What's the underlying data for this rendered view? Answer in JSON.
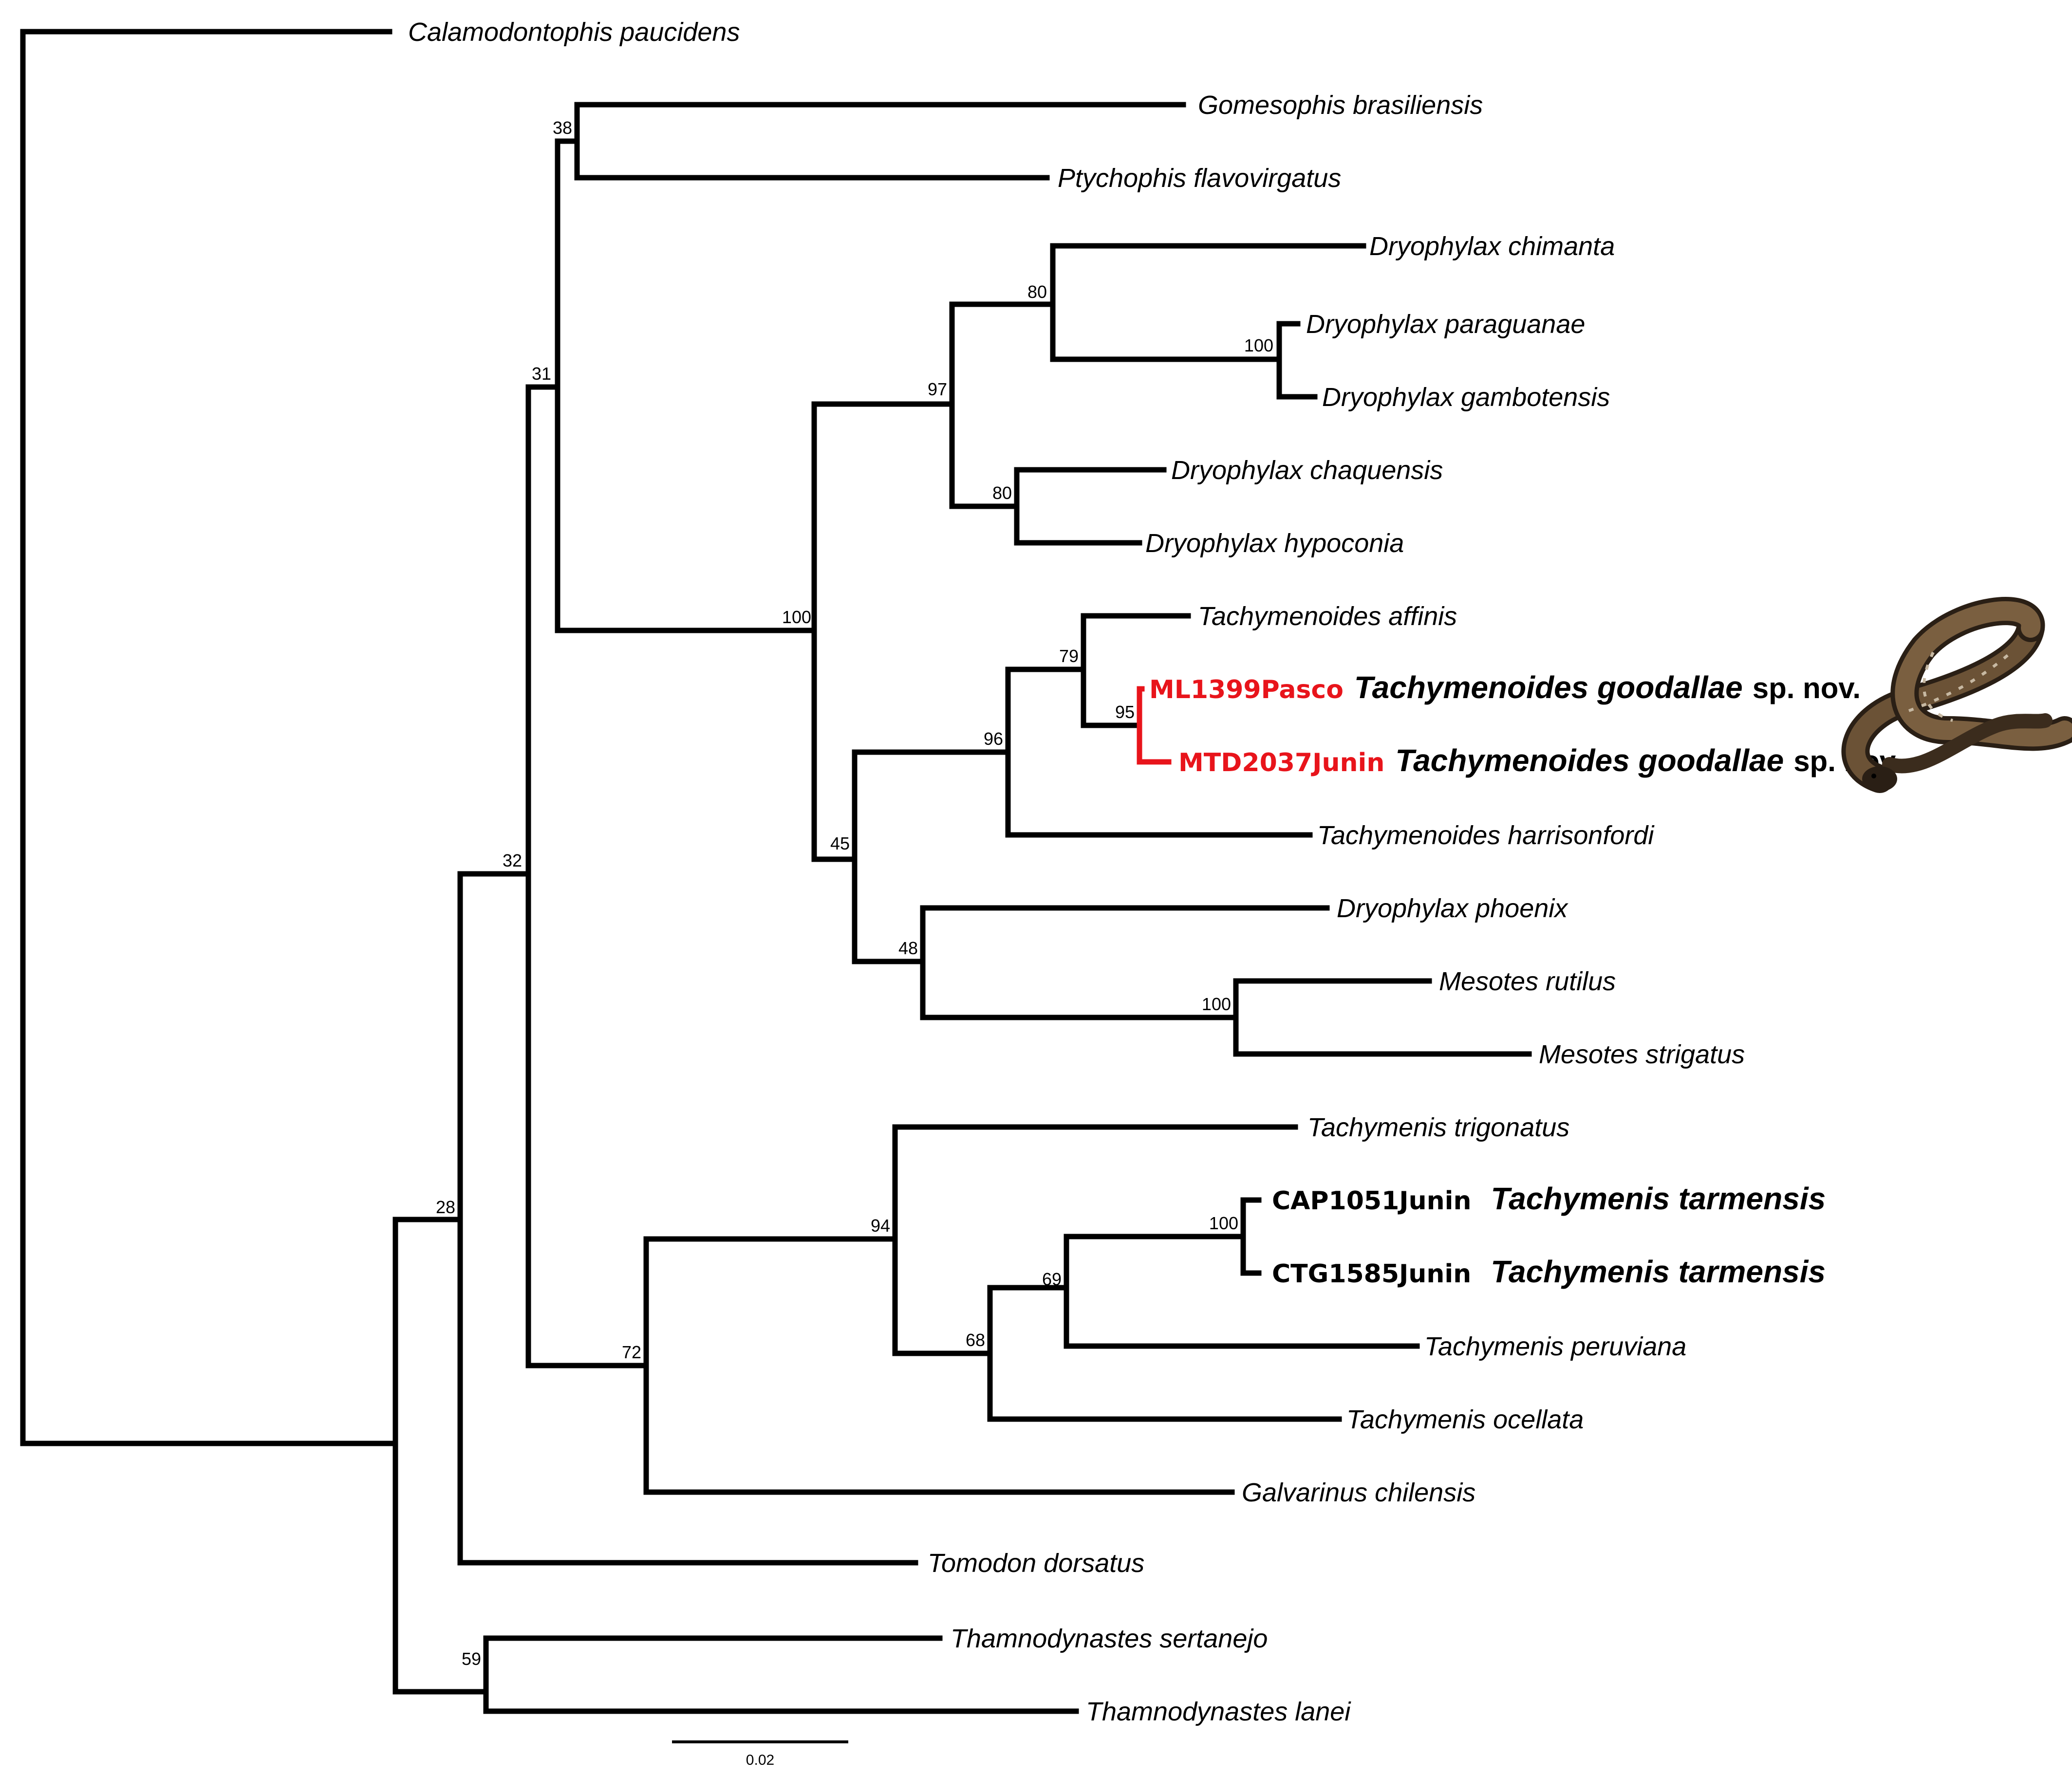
{
  "figure": {
    "type": "phylogenetic-tree",
    "scale_bar": {
      "label": "0.02"
    },
    "taxa": {
      "calamodontophis": "Calamodontophis paucidens",
      "gomesophis": "Gomesophis brasiliensis",
      "ptychophis": "Ptychophis flavovirgatus",
      "dry_chimanta": "Dryophylax chimanta",
      "dry_paraguanae": "Dryophylax paraguanae",
      "dry_gambotensis": "Dryophylax gambotensis",
      "dry_chaquensis": "Dryophylax chaquensis",
      "dry_hypoconia": "Dryophylax hypoconia",
      "tach_affinis": "Tachymenoides affinis",
      "tach_harrisonfordi": "Tachymenoides harrisonfordi",
      "dry_phoenix": "Dryophylax phoenix",
      "mes_rutilus": "Mesotes rutilus",
      "mes_strigatus": "Mesotes strigatus",
      "tmen_trigonatus": "Tachymenis trigonatus",
      "tmen_peruviana": "Tachymenis peruviana",
      "tmen_ocellata": "Tachymenis ocellata",
      "galvarinus": "Galvarinus chilensis",
      "tomodon": "Tomodon dorsatus",
      "tham_sertanejo": "Thamnodynastes sertanejo",
      "tham_lanei": "Thamnodynastes lanei"
    },
    "highlighted": {
      "ml1399": {
        "sample": "ML1399Pasco",
        "species": "Tachymenoides goodallae",
        "suffix": "sp. nov."
      },
      "mtd2037": {
        "sample": "MTD2037Junin",
        "species": "Tachymenoides goodallae",
        "suffix": "sp. nov."
      },
      "cap1051": {
        "sample": "CAP1051Junin",
        "species": "Tachymenis tarmensis"
      },
      "ctg1585": {
        "sample": "CTG1585Junin",
        "species": "Tachymenis tarmensis"
      }
    },
    "support": {
      "n38": "38",
      "n31": "31",
      "n80a": "80",
      "n100a": "100",
      "n97": "97",
      "n80b": "80",
      "n100b": "100",
      "n79": "79",
      "n95": "95",
      "n96": "96",
      "n45": "45",
      "n48": "48",
      "n100c": "100",
      "n32": "32",
      "n94": "94",
      "n100d": "100",
      "n69": "69",
      "n68": "68",
      "n72": "72",
      "n28": "28",
      "n59": "59"
    },
    "colors": {
      "highlight": "#e8141b",
      "branch": "#000000"
    },
    "photo": {
      "icon": "snake-photo-icon"
    }
  }
}
